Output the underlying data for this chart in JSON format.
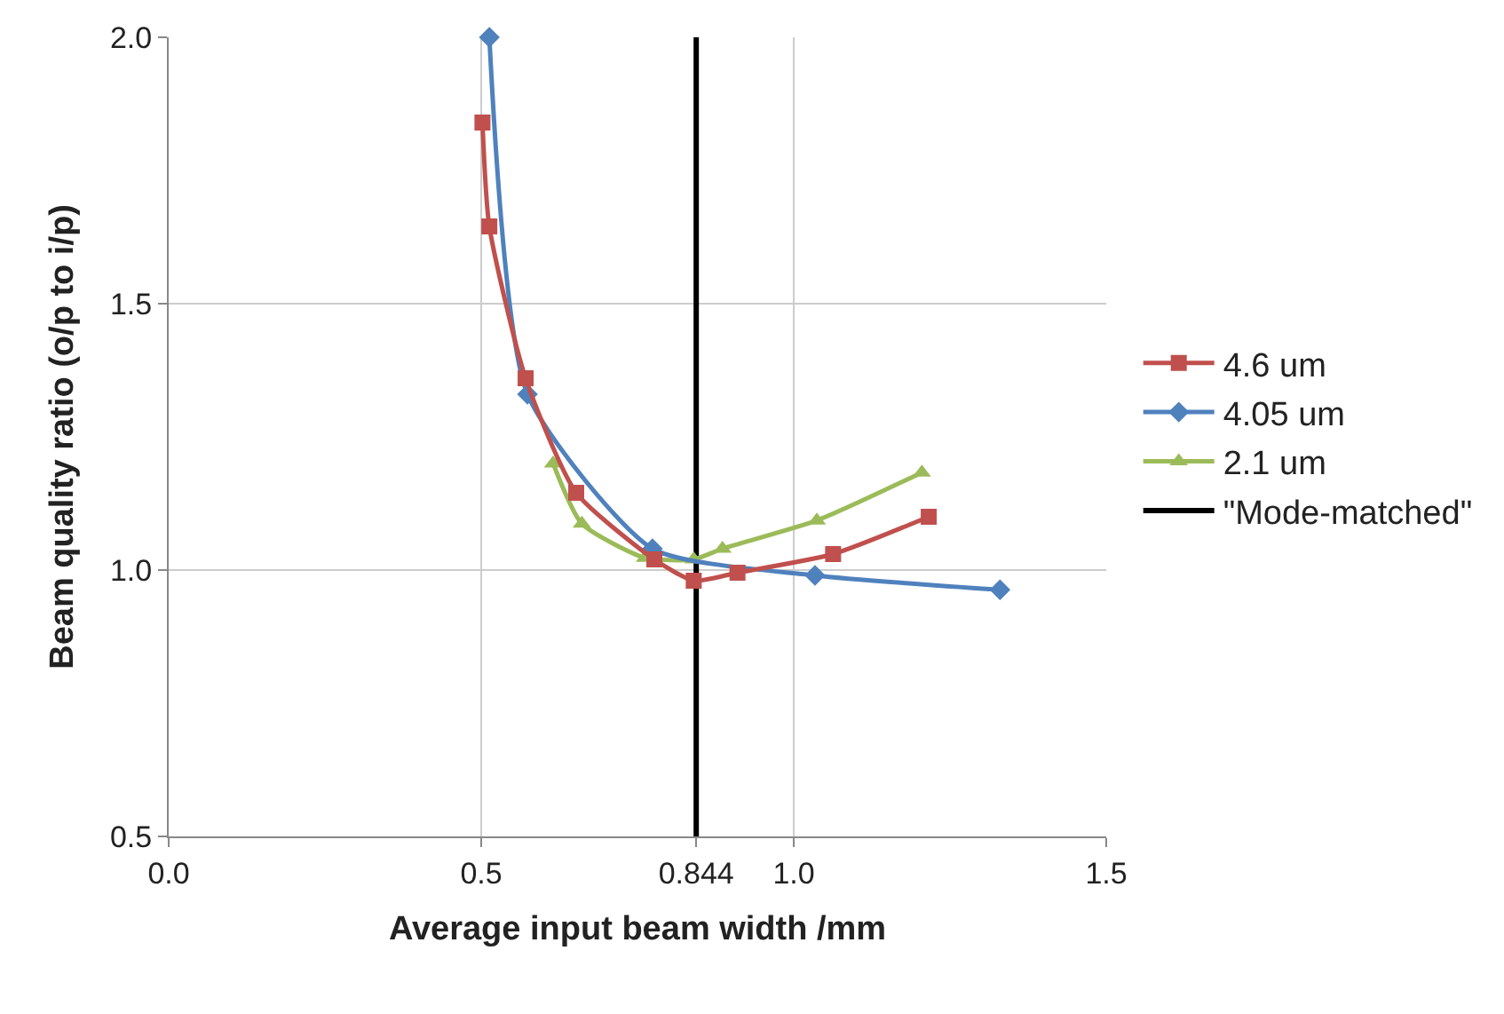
{
  "chart_data": {
    "type": "line",
    "xlabel": "Average input beam width /mm",
    "ylabel": "Beam quality ratio (o/p to i/p)",
    "series": [
      {
        "name": "4.6 um",
        "color": "#c0504d",
        "marker": "square",
        "x": [
          0.502,
          0.513,
          0.571,
          0.652,
          0.777,
          0.84,
          0.91,
          1.063,
          1.216
        ],
        "values": [
          1.84,
          1.645,
          1.36,
          1.145,
          1.02,
          0.98,
          0.995,
          1.03,
          1.1
        ]
      },
      {
        "name": "4.05 um",
        "color": "#4f81bd",
        "marker": "diamond",
        "x": [
          0.513,
          0.574,
          0.774,
          1.034,
          1.33
        ],
        "values": [
          2.0,
          1.33,
          1.04,
          0.99,
          0.963
        ]
      },
      {
        "name": "2.1 um",
        "color": "#9bbb59",
        "marker": "triangle",
        "x": [
          0.615,
          0.661,
          0.762,
          0.84,
          0.886,
          1.037,
          1.205
        ],
        "values": [
          1.2,
          1.087,
          1.023,
          1.02,
          1.04,
          1.093,
          1.183
        ]
      },
      {
        "name": "\"Mode-matched\"",
        "color": "#000000",
        "marker": "none",
        "x": [
          0.844,
          0.844
        ],
        "values": [
          0.5,
          2.0
        ]
      }
    ],
    "xlim": [
      0,
      1.5
    ],
    "xticks": [
      {
        "value": 0,
        "label": "0.0"
      },
      {
        "value": 0.5,
        "label": "0.5"
      },
      {
        "value": 0.844,
        "label": "0.844"
      },
      {
        "value": 1,
        "label": "1.0"
      },
      {
        "value": 1.5,
        "label": "1.5"
      }
    ],
    "ylim": [
      0.5,
      2.0
    ],
    "yticks": [
      {
        "value": 0.5,
        "label": "0.5"
      },
      {
        "value": 1,
        "label": "1.0"
      },
      {
        "value": 1.5,
        "label": "1.5"
      },
      {
        "value": 2,
        "label": "2.0"
      }
    ],
    "grid": true,
    "legend": "right",
    "line_style": "solid"
  }
}
